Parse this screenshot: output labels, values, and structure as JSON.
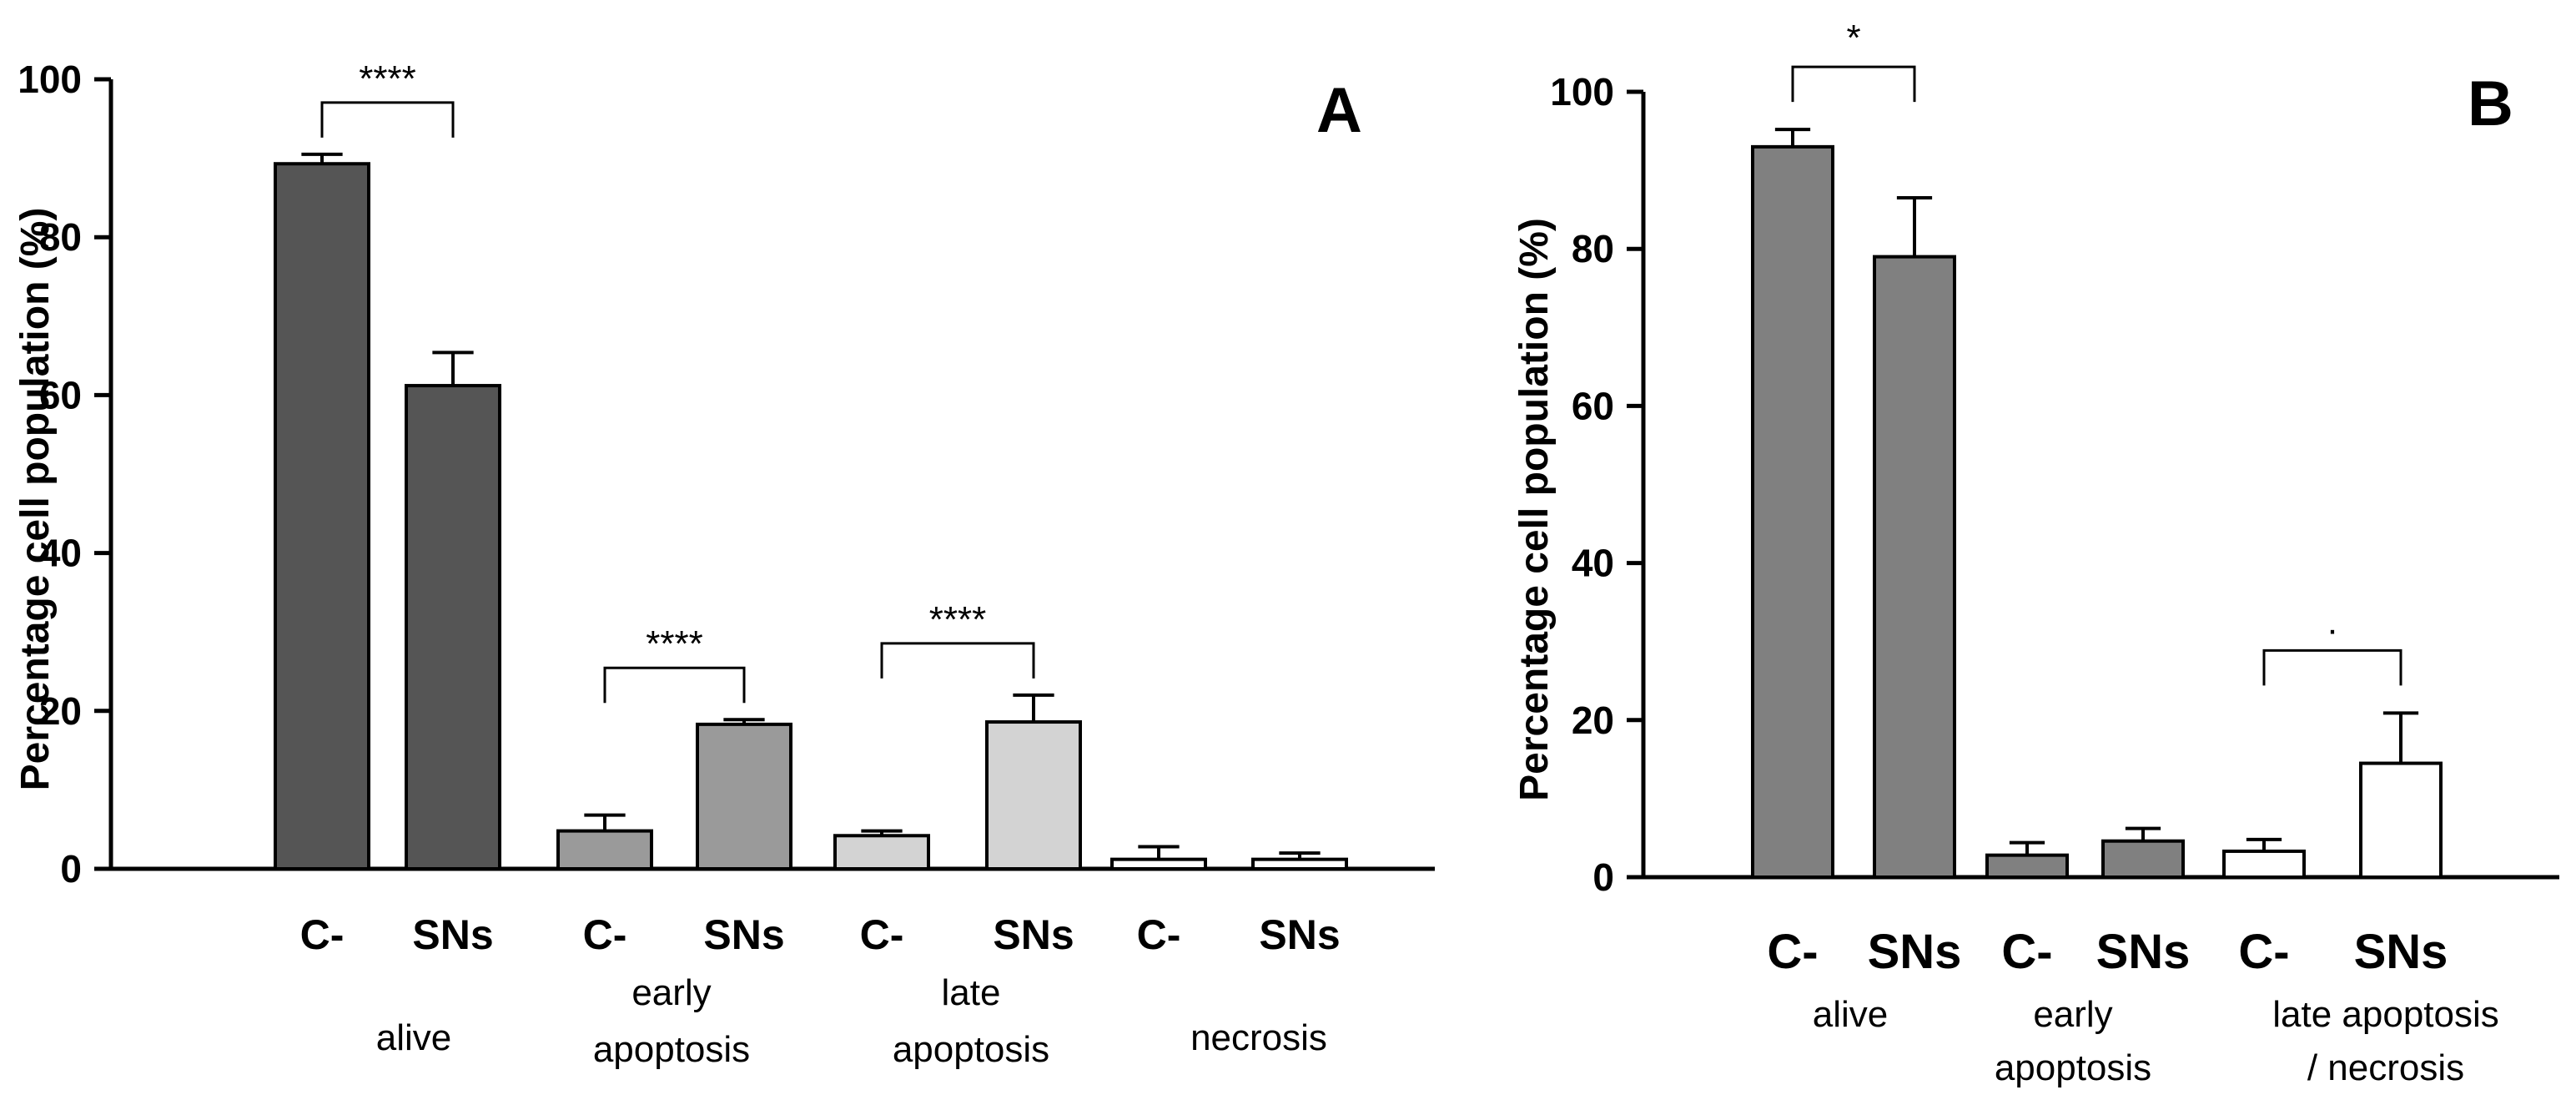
{
  "chart_data": [
    {
      "panel": "A",
      "type": "bar",
      "ylabel": "Percentage cell population (%)",
      "ylim": [
        0,
        100
      ],
      "yticks": [
        0,
        20,
        40,
        60,
        80,
        100
      ],
      "groups": [
        {
          "label": [
            "alive"
          ],
          "bars": [
            {
              "label": "C-",
              "value": 89.3,
              "error": 1.2,
              "color": "#555555"
            },
            {
              "label": "SNs",
              "value": 61.2,
              "error": 4.2,
              "color": "#555555"
            }
          ],
          "significance": "****"
        },
        {
          "label": [
            "early",
            "apoptosis"
          ],
          "bars": [
            {
              "label": "C-",
              "value": 4.8,
              "error": 2.0,
              "color": "#9a9a9a"
            },
            {
              "label": "SNs",
              "value": 18.3,
              "error": 0.6,
              "color": "#9a9a9a"
            }
          ],
          "significance": "****"
        },
        {
          "label": [
            "late",
            "apoptosis"
          ],
          "bars": [
            {
              "label": "C-",
              "value": 4.2,
              "error": 0.6,
              "color": "#d3d3d3"
            },
            {
              "label": "SNs",
              "value": 18.6,
              "error": 3.4,
              "color": "#d3d3d3"
            }
          ],
          "significance": "****"
        },
        {
          "label": [
            "necrosis"
          ],
          "bars": [
            {
              "label": "C-",
              "value": 1.2,
              "error": 1.6,
              "color": "#ffffff"
            },
            {
              "label": "SNs",
              "value": 1.2,
              "error": 0.8,
              "color": "#ffffff"
            }
          ],
          "significance": null
        }
      ]
    },
    {
      "panel": "B",
      "type": "bar",
      "ylabel": "Percentage cell population (%)",
      "ylim": [
        0,
        100
      ],
      "yticks": [
        0,
        20,
        40,
        60,
        80,
        100
      ],
      "groups": [
        {
          "label": [
            "alive"
          ],
          "bars": [
            {
              "label": "C-",
              "value": 93.0,
              "error": 2.2,
              "color": "#808080"
            },
            {
              "label": "SNs",
              "value": 79.0,
              "error": 7.5,
              "color": "#808080"
            }
          ],
          "significance": "*"
        },
        {
          "label": [
            "early",
            "apoptosis"
          ],
          "bars": [
            {
              "label": "C-",
              "value": 2.8,
              "error": 1.6,
              "color": "#808080"
            },
            {
              "label": "SNs",
              "value": 4.6,
              "error": 1.6,
              "color": "#808080"
            }
          ],
          "significance": null
        },
        {
          "label": [
            "late apoptosis",
            "/ necrosis"
          ],
          "bars": [
            {
              "label": "C-",
              "value": 3.3,
              "error": 1.5,
              "color": "#ffffff"
            },
            {
              "label": "SNs",
              "value": 14.5,
              "error": 6.4,
              "color": "#ffffff"
            }
          ],
          "significance": "."
        }
      ]
    }
  ]
}
